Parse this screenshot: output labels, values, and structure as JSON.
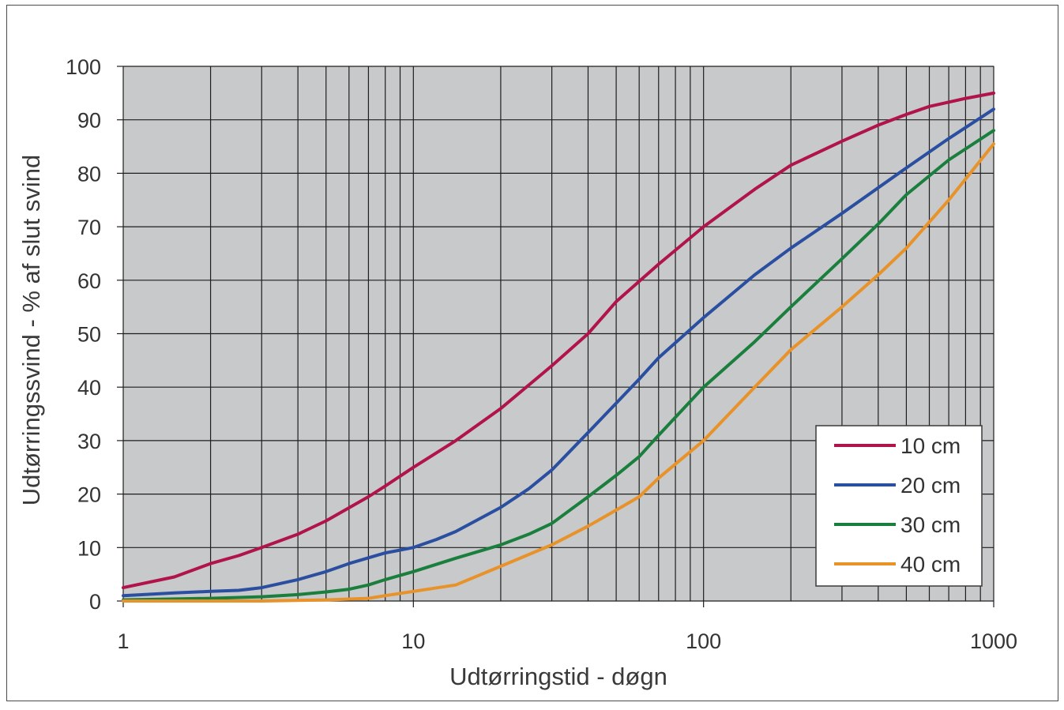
{
  "chart_data": {
    "type": "line",
    "title": "",
    "xlabel": "Udtørringstid - døgn",
    "ylabel": "Udtørringssvind - % af slut svind",
    "x_scale": "log",
    "xlim": [
      1,
      1000
    ],
    "ylim": [
      0,
      100
    ],
    "x_ticks": [
      "1",
      "10",
      "100",
      "1000"
    ],
    "y_ticks": [
      "0",
      "10",
      "20",
      "30",
      "40",
      "50",
      "60",
      "70",
      "80",
      "90",
      "100"
    ],
    "grid": true,
    "legend_position": "bottom-right",
    "plot_background": "#c8c9cb",
    "series": [
      {
        "name": "10 cm",
        "color": "#b0144a",
        "x": [
          1,
          1.5,
          2,
          2.5,
          3,
          4,
          5,
          7,
          8,
          10,
          14,
          20,
          30,
          40,
          50,
          70,
          100,
          150,
          200,
          300,
          400,
          500,
          600,
          800,
          1000
        ],
        "y": [
          2.5,
          4.5,
          7,
          8.5,
          10,
          12.5,
          15,
          19.5,
          21.5,
          25,
          30,
          36,
          44,
          50,
          56,
          63,
          70,
          77,
          81.5,
          86,
          89,
          91,
          92.5,
          94,
          95
        ]
      },
      {
        "name": "20 cm",
        "color": "#2b4fa0",
        "x": [
          1,
          1.5,
          2,
          2.5,
          3,
          4,
          5,
          6,
          8,
          10,
          12,
          14,
          20,
          25,
          30,
          40,
          50,
          60,
          70,
          100,
          150,
          200,
          300,
          500,
          700,
          1000
        ],
        "y": [
          1,
          1.5,
          1.8,
          2,
          2.5,
          4,
          5.5,
          7,
          9,
          10,
          11.5,
          13,
          17.5,
          21,
          24.5,
          31.5,
          37,
          41.5,
          45.5,
          53,
          61,
          66,
          72.5,
          81,
          86.5,
          92
        ]
      },
      {
        "name": "30 cm",
        "color": "#1a7f3c",
        "x": [
          1,
          2,
          3,
          4,
          5,
          6,
          7,
          8,
          10,
          14,
          20,
          25,
          30,
          40,
          50,
          60,
          70,
          100,
          150,
          200,
          300,
          400,
          500,
          700,
          1000
        ],
        "y": [
          0.2,
          0.5,
          0.8,
          1.2,
          1.7,
          2.2,
          3,
          4,
          5.5,
          8,
          10.5,
          12.5,
          14.5,
          19.5,
          23.5,
          27,
          31,
          40,
          48.5,
          55,
          64,
          70.5,
          76,
          82.5,
          88
        ]
      },
      {
        "name": "40 cm",
        "color": "#e8922a",
        "x": [
          1,
          3,
          5,
          7,
          8,
          10,
          14,
          20,
          30,
          40,
          50,
          60,
          70,
          100,
          150,
          200,
          300,
          400,
          500,
          700,
          1000
        ],
        "y": [
          0,
          0,
          0.2,
          0.5,
          1,
          1.8,
          3,
          6.5,
          10.5,
          14,
          17,
          19.5,
          23,
          30,
          40,
          47,
          55,
          61,
          66,
          75,
          85.5
        ]
      }
    ]
  }
}
